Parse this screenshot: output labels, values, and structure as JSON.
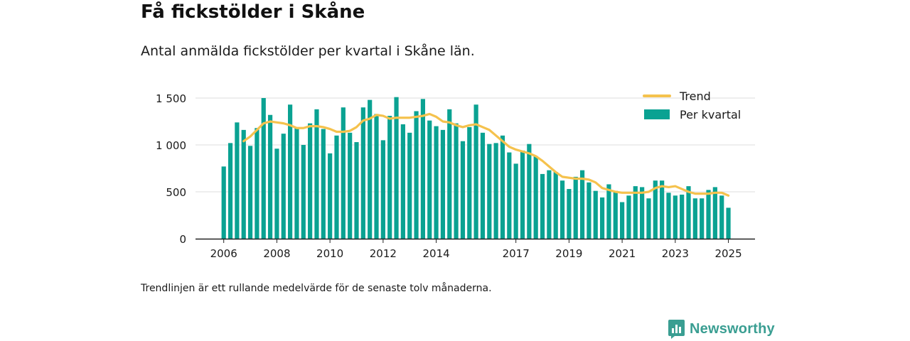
{
  "header": {
    "title": "Få fickstölder i Skåne",
    "subtitle": "Antal anmälda fickstölder per kvartal i Skåne län."
  },
  "footer": {
    "note": "Trendlinjen är ett rullande medelvärde för de senaste tolv månaderna.",
    "brand": "Newsworthy"
  },
  "colors": {
    "bars": "#0aa292",
    "trend": "#f5c24d",
    "grid": "#dddddd",
    "axis": "#222222",
    "brand": "#3a9e92"
  },
  "icons": {
    "brand": "newsworthy-logo-icon"
  },
  "chart_data": {
    "type": "bar",
    "title": "Få fickstölder i Skåne",
    "subtitle": "Antal anmälda fickstölder per kvartal i Skåne län.",
    "xlabel": "",
    "ylabel": "",
    "ylim": [
      0,
      1500
    ],
    "yticks": [
      0,
      500,
      1000,
      1500
    ],
    "ytick_labels": [
      "0",
      "500",
      "1 000",
      "1 500"
    ],
    "xticks": [
      2006,
      2008,
      2010,
      2012,
      2014,
      2017,
      2019,
      2021,
      2023,
      2025
    ],
    "grid": true,
    "legend_position": "top-right",
    "legend": [
      "Trend",
      "Per kvartal"
    ],
    "x_start_year": 2006,
    "series": [
      {
        "name": "Per kvartal",
        "type": "bar",
        "values": [
          770,
          1020,
          1240,
          1160,
          990,
          1180,
          1500,
          1320,
          960,
          1120,
          1430,
          1180,
          1000,
          1230,
          1380,
          1170,
          910,
          1100,
          1400,
          1130,
          1030,
          1400,
          1480,
          1330,
          1050,
          1310,
          1510,
          1220,
          1130,
          1360,
          1490,
          1260,
          1200,
          1160,
          1380,
          1230,
          1040,
          1190,
          1430,
          1130,
          1010,
          1020,
          1100,
          920,
          800,
          940,
          1010,
          880,
          690,
          730,
          710,
          620,
          530,
          660,
          730,
          600,
          510,
          440,
          580,
          510,
          390,
          460,
          560,
          550,
          430,
          620,
          620,
          490,
          460,
          470,
          560,
          430,
          430,
          520,
          550,
          460,
          330
        ]
      },
      {
        "name": "Trend",
        "type": "line",
        "values": [
          null,
          null,
          null,
          1040,
          1090,
          1160,
          1230,
          1250,
          1240,
          1230,
          1210,
          1180,
          1180,
          1200,
          1200,
          1190,
          1170,
          1140,
          1140,
          1150,
          1190,
          1260,
          1280,
          1320,
          1310,
          1280,
          1290,
          1290,
          1290,
          1300,
          1310,
          1330,
          1300,
          1250,
          1240,
          1210,
          1190,
          1210,
          1220,
          1190,
          1160,
          1100,
          1040,
          980,
          950,
          930,
          910,
          880,
          830,
          770,
          710,
          660,
          650,
          640,
          640,
          630,
          600,
          540,
          520,
          500,
          490,
          490,
          490,
          490,
          500,
          540,
          560,
          550,
          560,
          530,
          500,
          480,
          480,
          480,
          490,
          490,
          460
        ]
      }
    ]
  }
}
